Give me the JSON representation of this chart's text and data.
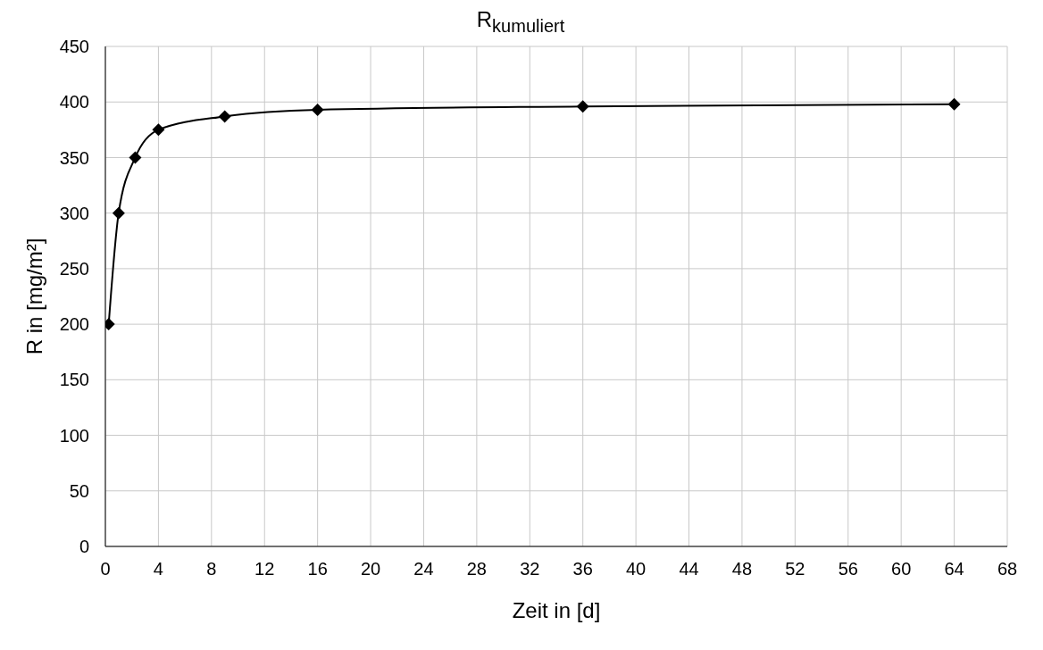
{
  "chart_data": {
    "type": "line",
    "title": "R$_{kumuliert}$",
    "xlabel": "Zeit in [d]",
    "ylabel": "R in [mg/m²]",
    "x": [
      0.25,
      1,
      2.25,
      4,
      9,
      16,
      36,
      64
    ],
    "series": [
      {
        "color": "#000000",
        "values": [
          200,
          300,
          350,
          375,
          387,
          393,
          396,
          398
        ]
      }
    ],
    "xlim": [
      0,
      68
    ],
    "xticks": [
      0,
      4,
      8,
      12,
      16,
      20,
      24,
      28,
      32,
      36,
      40,
      44,
      48,
      52,
      56,
      60,
      64,
      68
    ],
    "ylim": [
      0,
      450
    ],
    "yticks": [
      0,
      50,
      100,
      150,
      200,
      250,
      300,
      350,
      400,
      450
    ],
    "grid": true,
    "legend": false,
    "marker": "diamond",
    "line_style": "solid"
  }
}
